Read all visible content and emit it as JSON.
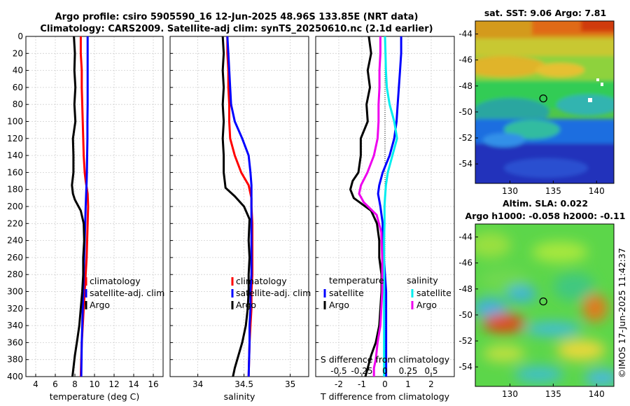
{
  "page": {
    "title_line1": "Argo profile: csiro 5905590_16 12-Jun-2025 48.96S 133.85E (NRT data)",
    "title_line2": "Climatology: CARS2009. Satellite-adj clim: synTS_20250610.nc (2.1d earlier)",
    "credit": "©IMOS 17-Jun-2025 11:42:37"
  },
  "colors": {
    "climatology": "#ff0000",
    "satellite_temp": "#0000ff",
    "argo": "#000000",
    "satellite_sal": "#00eeee",
    "argo_sal": "#ee00ee",
    "marker_ring": "#000000"
  },
  "chart_data": [
    {
      "id": "temperature",
      "type": "line",
      "xlabel": "temperature (deg C)",
      "ylabel": "",
      "xlim": [
        3,
        17
      ],
      "ylim": [
        400,
        0
      ],
      "xticks": [
        4,
        6,
        8,
        10,
        12,
        14,
        16
      ],
      "yticks": [
        0,
        20,
        40,
        60,
        80,
        100,
        120,
        140,
        160,
        180,
        200,
        220,
        240,
        260,
        280,
        300,
        320,
        340,
        360,
        380,
        400
      ],
      "grid": true,
      "legend": {
        "placement": "lower-right",
        "entries": [
          "climatology",
          "satellite-adj. clim",
          "Argo"
        ]
      },
      "series": [
        {
          "name": "climatology",
          "color": "#ff0000",
          "x": [
            8.6,
            8.6,
            8.7,
            8.7,
            8.75,
            8.8,
            8.85,
            8.9,
            9.0,
            9.1,
            9.3,
            9.35,
            9.3,
            9.25,
            9.2,
            9.1,
            9.0,
            8.9,
            8.8,
            8.7,
            8.6
          ],
          "depth": [
            0,
            20,
            40,
            60,
            80,
            100,
            120,
            140,
            160,
            170,
            185,
            200,
            220,
            240,
            260,
            280,
            300,
            320,
            340,
            360,
            400
          ]
        },
        {
          "name": "satellite-adj. clim",
          "color": "#0000ff",
          "x": [
            9.3,
            9.3,
            9.3,
            9.3,
            9.3,
            9.28,
            9.28,
            9.25,
            9.22,
            9.2,
            9.15,
            9.1,
            9.05,
            9.0,
            8.95,
            8.9,
            8.85,
            8.8,
            8.75,
            8.7,
            8.65
          ],
          "depth": [
            0,
            20,
            40,
            60,
            80,
            100,
            120,
            140,
            160,
            170,
            185,
            200,
            220,
            240,
            260,
            280,
            300,
            320,
            340,
            360,
            400
          ]
        },
        {
          "name": "Argo",
          "color": "#000000",
          "x": [
            7.9,
            8.0,
            7.95,
            8.05,
            7.95,
            8.05,
            7.8,
            7.85,
            7.85,
            7.7,
            7.8,
            8.0,
            8.6,
            8.9,
            8.95,
            8.85,
            8.85,
            8.75,
            8.6,
            8.45,
            8.2,
            8.0,
            7.85,
            7.75
          ],
          "depth": [
            0,
            20,
            40,
            60,
            80,
            100,
            120,
            140,
            160,
            175,
            185,
            192,
            205,
            220,
            240,
            260,
            280,
            300,
            320,
            340,
            360,
            375,
            390,
            400
          ]
        }
      ]
    },
    {
      "id": "salinity",
      "type": "line",
      "xlabel": "salinity",
      "ylabel": "",
      "xlim": [
        33.7,
        35.2
      ],
      "ylim": [
        400,
        0
      ],
      "xticks": [
        34,
        34.5,
        35
      ],
      "grid": true,
      "legend": {
        "placement": "lower-right",
        "entries": [
          "climatology",
          "satellite-adj. clim",
          "Argo"
        ]
      },
      "series": [
        {
          "name": "climatology",
          "color": "#ff0000",
          "x": [
            34.32,
            34.32,
            34.33,
            34.33,
            34.34,
            34.34,
            34.35,
            34.4,
            34.47,
            34.55,
            34.58,
            34.58,
            34.59,
            34.59,
            34.59,
            34.59,
            34.58,
            34.58,
            34.57,
            34.56,
            34.55
          ],
          "depth": [
            0,
            20,
            40,
            60,
            80,
            100,
            120,
            140,
            160,
            175,
            190,
            200,
            220,
            240,
            260,
            280,
            300,
            320,
            340,
            360,
            400
          ]
        },
        {
          "name": "satellite-adj. clim",
          "color": "#0000ff",
          "x": [
            34.32,
            34.33,
            34.34,
            34.35,
            34.36,
            34.4,
            34.48,
            34.55,
            34.57,
            34.58,
            34.58,
            34.58,
            34.58,
            34.58,
            34.58,
            34.58,
            34.57,
            34.57,
            34.56,
            34.56,
            34.55
          ],
          "depth": [
            0,
            20,
            40,
            60,
            80,
            100,
            120,
            140,
            160,
            175,
            190,
            200,
            220,
            240,
            260,
            280,
            300,
            320,
            340,
            360,
            400
          ]
        },
        {
          "name": "Argo",
          "color": "#000000",
          "x": [
            34.27,
            34.28,
            34.27,
            34.28,
            34.27,
            34.28,
            34.27,
            34.28,
            34.28,
            34.3,
            34.4,
            34.5,
            34.56,
            34.55,
            34.56,
            34.55,
            34.55,
            34.54,
            34.52,
            34.48,
            34.44,
            34.4,
            34.38
          ],
          "depth": [
            0,
            20,
            40,
            60,
            80,
            100,
            120,
            140,
            160,
            178,
            188,
            200,
            215,
            240,
            260,
            280,
            300,
            320,
            340,
            360,
            375,
            390,
            400
          ]
        }
      ]
    },
    {
      "id": "difference",
      "type": "line",
      "xlabel": "T difference from climatology",
      "top_xlabel": "S difference from climatology",
      "xlim": [
        -3,
        3
      ],
      "top_xlim": [
        -0.75,
        0.75
      ],
      "ylim": [
        400,
        0
      ],
      "xticks": [
        -2,
        -1,
        0,
        1,
        2
      ],
      "xtick_labels": [
        "-2",
        "-1",
        "0",
        "1",
        "2"
      ],
      "top_xticks": [
        -0.5,
        -0.25,
        0,
        0.25,
        0.5
      ],
      "top_xtick_labels": [
        "-0.5",
        "-0.25",
        "0",
        "0.25",
        "0.5"
      ],
      "grid": true,
      "legend": {
        "placement": "lower",
        "groups": [
          {
            "title": "temperature",
            "entries": [
              "satellite",
              "Argo"
            ]
          },
          {
            "title": "salinity",
            "entries": [
              "satellite",
              "Argo"
            ]
          }
        ]
      },
      "series": [
        {
          "name": "temperature satellite",
          "color": "#0000ff",
          "axis": "T",
          "x": [
            0.7,
            0.7,
            0.65,
            0.6,
            0.55,
            0.5,
            0.4,
            0.2,
            -0.1,
            -0.25,
            -0.3,
            -0.2,
            -0.1,
            -0.1,
            -0.05,
            0.0,
            0.05,
            0.05,
            0.05,
            0.05,
            0.05
          ],
          "depth": [
            0,
            20,
            40,
            60,
            80,
            100,
            120,
            140,
            160,
            175,
            185,
            200,
            220,
            240,
            260,
            280,
            300,
            320,
            340,
            360,
            400
          ]
        },
        {
          "name": "temperature Argo",
          "color": "#000000",
          "axis": "T",
          "x": [
            -0.7,
            -0.6,
            -0.75,
            -0.65,
            -0.8,
            -0.75,
            -1.05,
            -1.05,
            -1.15,
            -1.4,
            -1.5,
            -1.35,
            -0.6,
            -0.35,
            -0.25,
            -0.25,
            -0.15,
            -0.15,
            -0.2,
            -0.25,
            -0.4,
            -0.6,
            -0.75,
            -0.85
          ],
          "depth": [
            0,
            20,
            40,
            60,
            80,
            100,
            120,
            140,
            160,
            170,
            180,
            190,
            205,
            220,
            240,
            260,
            280,
            300,
            320,
            340,
            360,
            375,
            390,
            400
          ]
        },
        {
          "name": "salinity satellite",
          "color": "#00eeee",
          "axis": "S",
          "x": [
            0.0,
            0.005,
            0.01,
            0.02,
            0.05,
            0.1,
            0.13,
            0.08,
            0.03,
            0.01,
            0.0,
            -0.005,
            -0.005,
            -0.01,
            -0.01,
            -0.01,
            -0.01,
            -0.01,
            -0.01,
            -0.01,
            -0.01
          ],
          "depth": [
            0,
            20,
            40,
            60,
            80,
            100,
            120,
            140,
            160,
            175,
            190,
            200,
            220,
            240,
            260,
            280,
            300,
            320,
            340,
            360,
            400
          ]
        },
        {
          "name": "salinity Argo",
          "color": "#ee00ee",
          "axis": "S",
          "x": [
            -0.05,
            -0.05,
            -0.06,
            -0.06,
            -0.07,
            -0.07,
            -0.08,
            -0.12,
            -0.19,
            -0.26,
            -0.28,
            -0.23,
            -0.09,
            -0.04,
            -0.03,
            -0.03,
            -0.03,
            -0.04,
            -0.05,
            -0.08,
            -0.1,
            -0.12,
            -0.12
          ],
          "depth": [
            0,
            20,
            40,
            60,
            80,
            100,
            120,
            140,
            160,
            175,
            185,
            195,
            210,
            230,
            260,
            280,
            300,
            320,
            340,
            360,
            380,
            390,
            400
          ]
        }
      ]
    },
    {
      "id": "sst_map",
      "type": "heatmap",
      "title": "sat. SST: 9.06 Argo: 7.81",
      "xlim": [
        126,
        142
      ],
      "ylim": [
        -55.5,
        -43
      ],
      "xticks": [
        130,
        135,
        140
      ],
      "yticks": [
        -44,
        -46,
        -48,
        -50,
        -52,
        -54
      ],
      "marker": {
        "lon": 133.85,
        "lat": -48.96
      }
    },
    {
      "id": "sla_map",
      "type": "heatmap",
      "title_line1": "Altim. SLA: 0.022",
      "title_line2": "Argo h1000: -0.058 h2000: -0.11",
      "xlim": [
        126,
        142
      ],
      "ylim": [
        -55.5,
        -43
      ],
      "xticks": [
        130,
        135,
        140
      ],
      "yticks": [
        -44,
        -46,
        -48,
        -50,
        -52,
        -54
      ],
      "marker": {
        "lon": 133.85,
        "lat": -48.96
      }
    }
  ]
}
